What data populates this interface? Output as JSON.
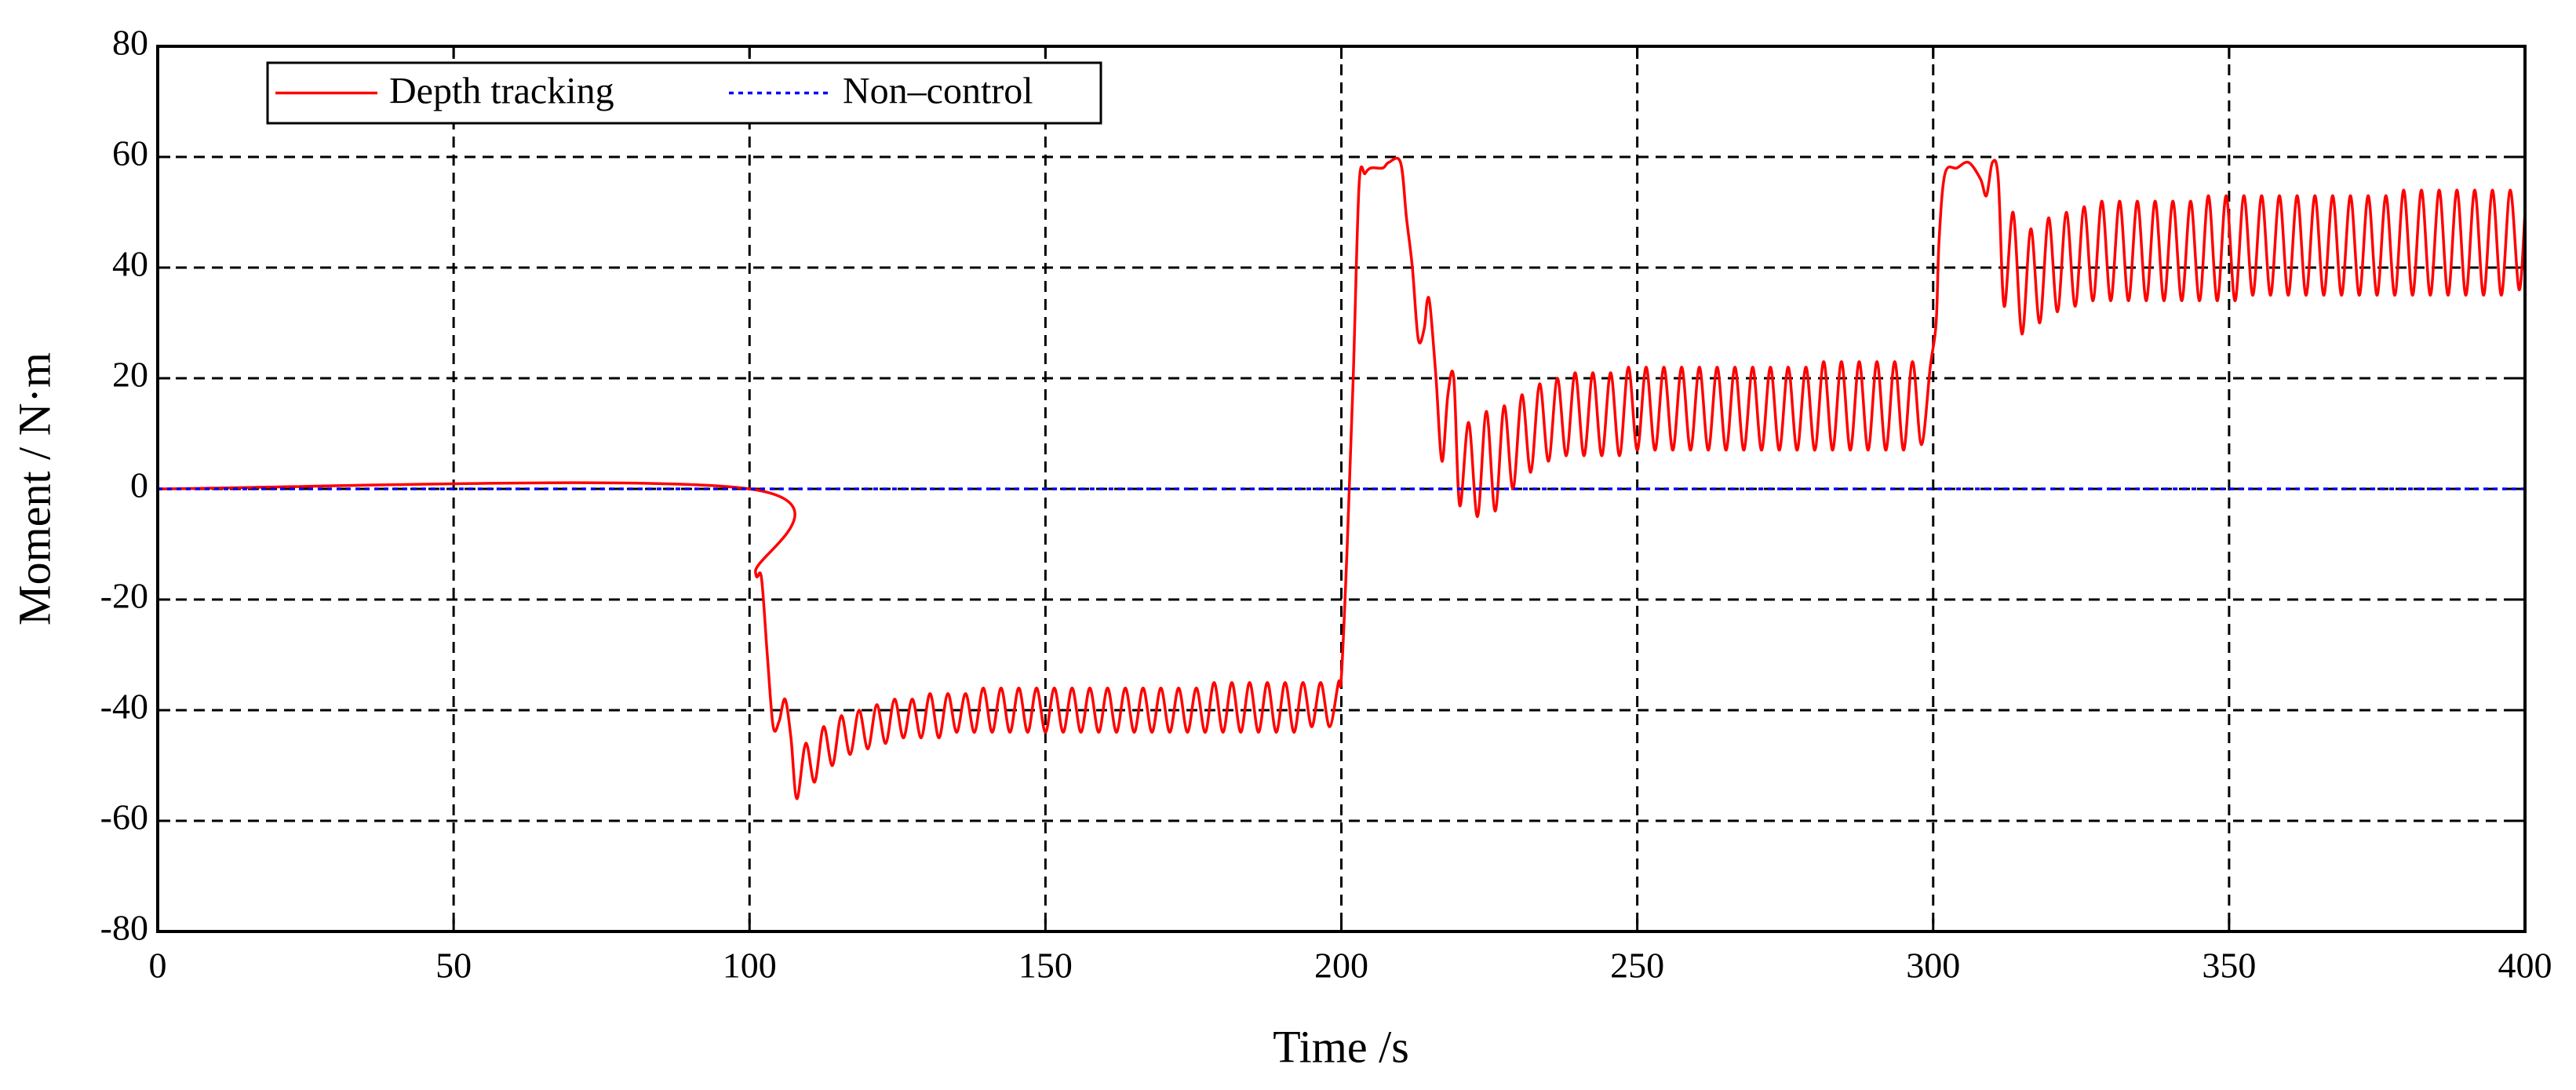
{
  "chart_data": {
    "type": "line",
    "x_label": "Time /s",
    "y_label": "Moment / N·m",
    "xlim": [
      0,
      400
    ],
    "xticks": [
      0,
      50,
      100,
      150,
      200,
      250,
      300,
      350,
      400
    ],
    "ylim": [
      -80,
      80
    ],
    "yticks": [
      -80,
      -60,
      -40,
      -20,
      0,
      20,
      40,
      60,
      80
    ],
    "grid": true,
    "legend": "top-left",
    "series": [
      {
        "name": "Depth tracking",
        "color": "#ff0000",
        "style": "solid",
        "x": [
          0,
          100,
          101,
          102,
          103,
          104,
          105,
          106,
          107,
          108,
          109.5,
          111,
          112.5,
          114,
          115.5,
          117,
          118.5,
          120,
          121.5,
          123,
          124.5,
          126,
          127.5,
          129,
          130.5,
          132,
          133.5,
          135,
          136.5,
          138,
          139.5,
          141,
          142.5,
          144,
          145.5,
          147,
          148.5,
          150,
          151.5,
          153,
          154.5,
          156,
          157.5,
          159,
          160.5,
          162,
          163.5,
          165,
          166.5,
          168,
          169.5,
          171,
          172.5,
          174,
          175.5,
          177,
          178.5,
          180,
          181.5,
          183,
          184.5,
          186,
          187.5,
          189,
          190.5,
          192,
          193.5,
          195,
          196.5,
          198,
          199.5,
          200,
          201,
          202,
          203,
          204,
          205,
          207,
          208,
          210,
          211,
          212,
          213,
          214,
          214.5,
          215,
          216,
          217,
          218,
          219,
          220,
          221.5,
          223,
          224.5,
          226,
          227.5,
          229,
          230.5,
          232,
          233.5,
          235,
          236.5,
          238,
          239.5,
          241,
          242.5,
          244,
          245.5,
          247,
          248.5,
          250,
          251.5,
          253,
          254.5,
          256,
          257.5,
          259,
          260.5,
          262,
          263.5,
          265,
          266.5,
          268,
          269.5,
          271,
          272.5,
          274,
          275.5,
          277,
          278.5,
          280,
          281.5,
          283,
          284.5,
          286,
          287.5,
          289,
          290.5,
          292,
          293.5,
          295,
          296.5,
          298,
          299.5,
          300.5,
          301,
          302,
          304,
          306,
          308,
          309,
          310,
          311,
          312,
          313.5,
          315,
          316.5,
          318,
          319.5,
          321,
          322.5,
          324,
          325.5,
          327,
          328.5,
          330,
          331.5,
          333,
          334.5,
          336,
          337.5,
          339,
          340.5,
          342,
          343.5,
          345,
          346.5,
          348,
          349.5,
          351,
          352.5,
          354,
          355.5,
          357,
          358.5,
          360,
          361.5,
          363,
          364.5,
          366,
          367.5,
          369,
          370.5,
          372,
          373.5,
          375,
          376.5,
          378,
          379.5,
          381,
          382.5,
          384,
          385.5,
          387,
          388.5,
          390,
          391.5,
          393,
          394.5,
          396,
          397.5,
          399,
          400
        ],
        "values": [
          0,
          0,
          -15,
          -16,
          -30,
          -43,
          -42,
          -38,
          -45,
          -56,
          -46,
          -53,
          -43,
          -50,
          -41,
          -48,
          -40,
          -47,
          -39,
          -46,
          -38,
          -45,
          -38,
          -45,
          -37,
          -45,
          -37,
          -44,
          -37,
          -44,
          -36,
          -44,
          -36,
          -44,
          -36,
          -44,
          -36,
          -44,
          -36,
          -44,
          -36,
          -44,
          -36,
          -44,
          -36,
          -44,
          -36,
          -44,
          -36,
          -44,
          -36,
          -44,
          -36,
          -44,
          -36,
          -44,
          -35,
          -44,
          -35,
          -44,
          -35,
          -44,
          -35,
          -44,
          -35,
          -44,
          -35,
          -43,
          -35,
          -43,
          -35,
          -34,
          -10,
          20,
          55,
          57,
          58,
          58,
          59,
          59,
          49,
          40,
          27,
          29,
          34,
          33,
          20,
          5,
          17,
          20,
          -3,
          12,
          -5,
          14,
          -4,
          15,
          0,
          17,
          3,
          19,
          5,
          20,
          6,
          21,
          6,
          21,
          6,
          21,
          6,
          22,
          7,
          22,
          7,
          22,
          7,
          22,
          7,
          22,
          7,
          22,
          7,
          22,
          7,
          22,
          7,
          22,
          7,
          22,
          7,
          22,
          7,
          23,
          7,
          23,
          7,
          23,
          7,
          23,
          7,
          23,
          7,
          23,
          8,
          22,
          30,
          45,
          57,
          58,
          59,
          56,
          53,
          59,
          56,
          33,
          50,
          28,
          47,
          30,
          49,
          32,
          50,
          33,
          51,
          34,
          52,
          34,
          52,
          34,
          52,
          34,
          52,
          34,
          52,
          34,
          52,
          34,
          53,
          34,
          53,
          34,
          53,
          35,
          53,
          35,
          53,
          35,
          53,
          35,
          53,
          35,
          53,
          35,
          53,
          35,
          53,
          35,
          53,
          35,
          54,
          35,
          54,
          35,
          54,
          35,
          54,
          35,
          54,
          35,
          54,
          35,
          54,
          36,
          50
        ]
      },
      {
        "name": "Non–control",
        "color": "#0000ff",
        "style": "dotted",
        "x": [
          0,
          400
        ],
        "values": [
          0,
          0
        ]
      }
    ]
  }
}
